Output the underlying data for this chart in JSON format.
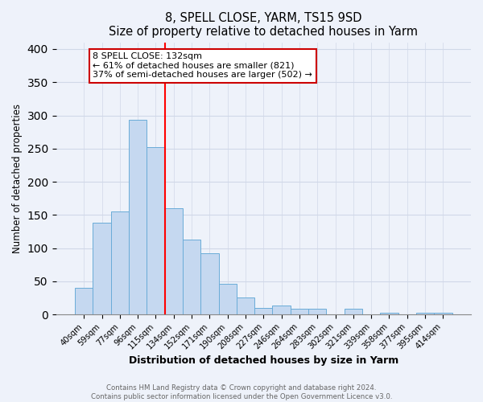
{
  "title": "8, SPELL CLOSE, YARM, TS15 9SD",
  "subtitle": "Size of property relative to detached houses in Yarm",
  "xlabel": "Distribution of detached houses by size in Yarm",
  "ylabel": "Number of detached properties",
  "categories": [
    "40sqm",
    "59sqm",
    "77sqm",
    "96sqm",
    "115sqm",
    "134sqm",
    "152sqm",
    "171sqm",
    "190sqm",
    "208sqm",
    "227sqm",
    "246sqm",
    "264sqm",
    "283sqm",
    "302sqm",
    "321sqm",
    "339sqm",
    "358sqm",
    "377sqm",
    "395sqm",
    "414sqm"
  ],
  "values": [
    40,
    138,
    155,
    293,
    252,
    160,
    113,
    92,
    46,
    25,
    10,
    13,
    8,
    8,
    0,
    8,
    0,
    3,
    0,
    3,
    3
  ],
  "bar_color": "#c5d8f0",
  "bar_edge_color": "#6aacd8",
  "red_line_index": 5,
  "annotation_line1": "8 SPELL CLOSE: 132sqm",
  "annotation_line2": "← 61% of detached houses are smaller (821)",
  "annotation_line3": "37% of semi-detached houses are larger (502) →",
  "ylim": [
    0,
    410
  ],
  "yticks": [
    0,
    50,
    100,
    150,
    200,
    250,
    300,
    350,
    400
  ],
  "footer1": "Contains HM Land Registry data © Crown copyright and database right 2024.",
  "footer2": "Contains public sector information licensed under the Open Government Licence v3.0.",
  "bg_color": "#eef2fa",
  "grid_color": "#d0d8e8"
}
